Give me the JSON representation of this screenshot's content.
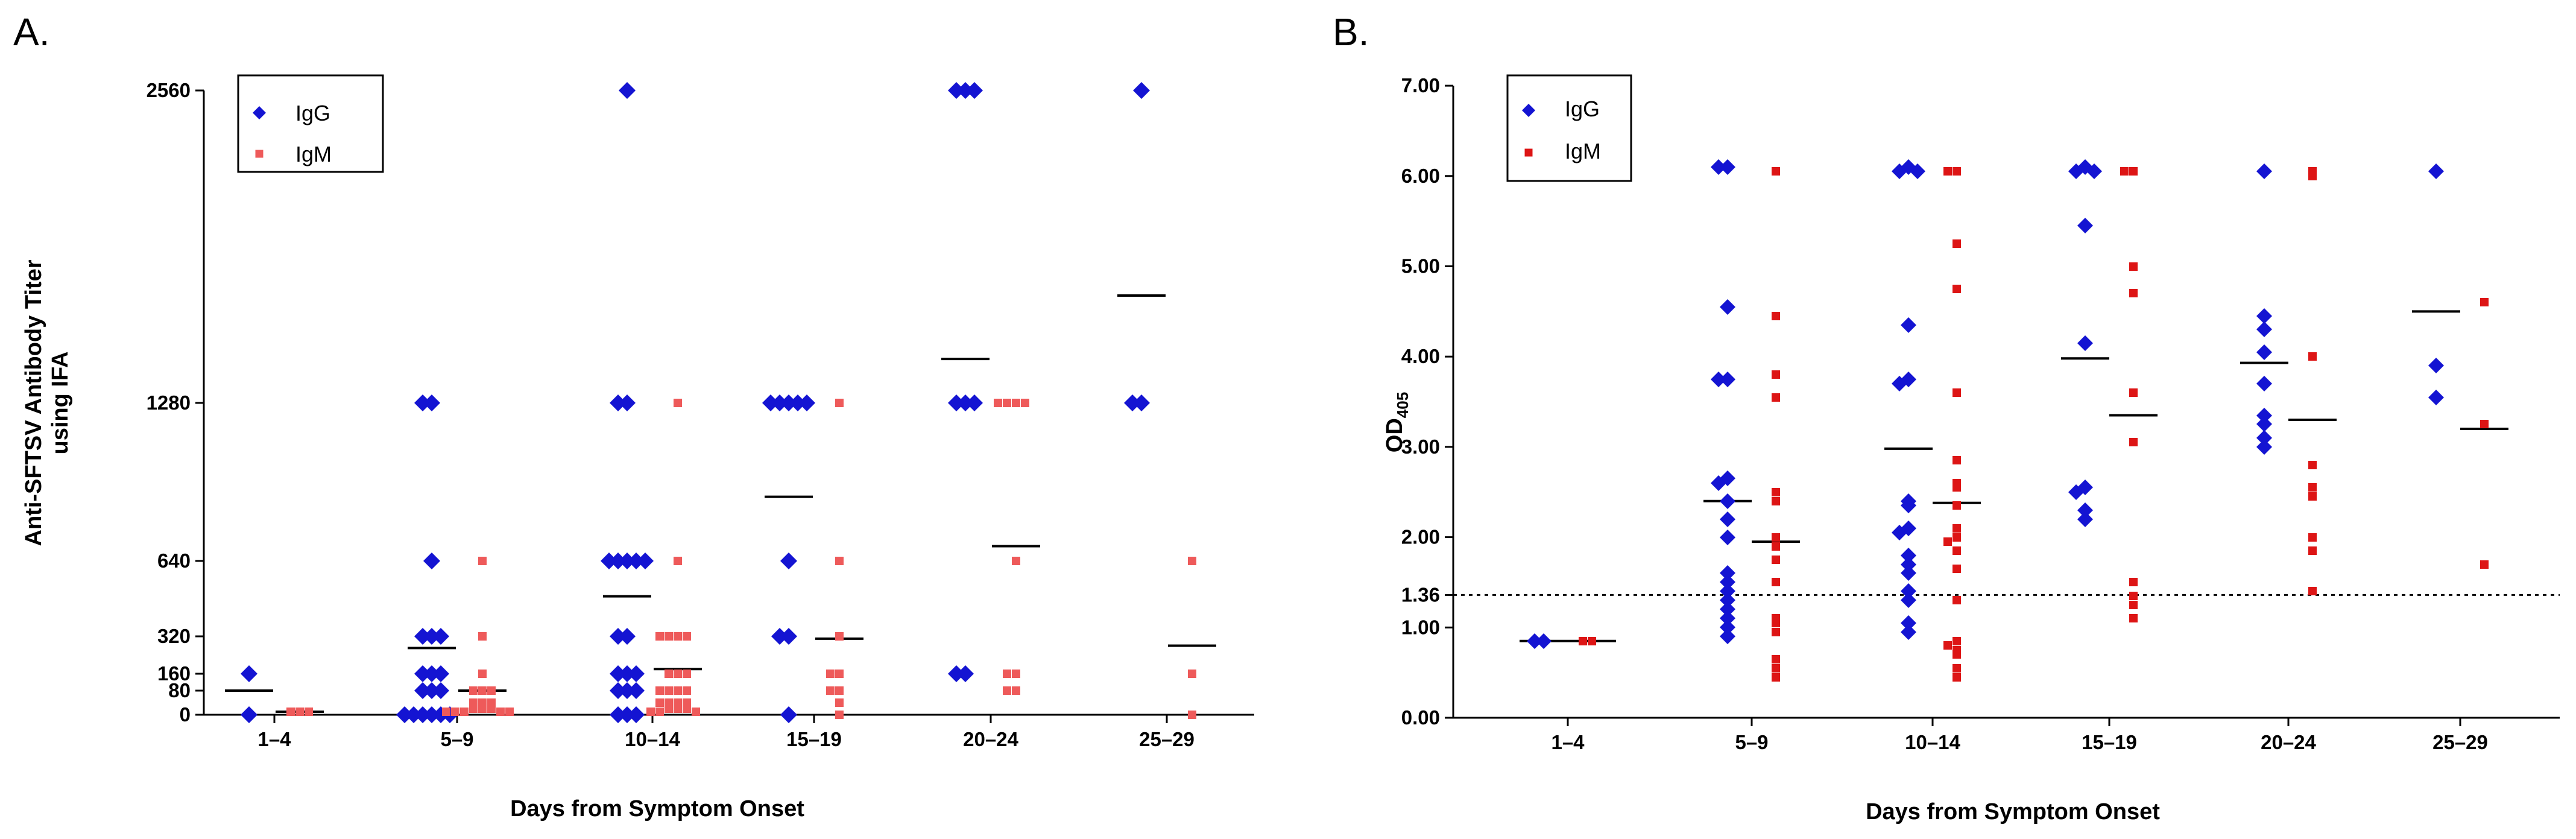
{
  "colors": {
    "igg": "#1414d2",
    "igm_a": "#ee5a5a",
    "igm_b": "#dd1515",
    "mean_line": "#000000",
    "axis": "#000000"
  },
  "chart_data": [
    {
      "panel": "A.",
      "type": "scatter",
      "xlabel": "Days from Symptom Onset",
      "ylabel_lines": [
        "Anti-SFTSV Antibody Titer",
        "using IFA"
      ],
      "categories": [
        "1–4",
        "5–9",
        "10–14",
        "15–19",
        "20–24",
        "25–29"
      ],
      "ylim": [
        0,
        2560
      ],
      "yticks": [
        {
          "value": 0,
          "label": "0"
        },
        {
          "value": 80,
          "label": "80"
        },
        {
          "value": 160,
          "label": "160"
        },
        {
          "value": 320,
          "label": "320"
        },
        {
          "value": 640,
          "label": "640"
        },
        {
          "value": 1280,
          "label": "1280"
        },
        {
          "value": 2560,
          "label": "2560"
        }
      ],
      "legend": [
        {
          "name": "IgG",
          "marker": "diamond"
        },
        {
          "name": "IgM",
          "marker": "square"
        }
      ],
      "series": [
        {
          "name": "IgG",
          "marker": "diamond",
          "color_key": "igg",
          "groups": [
            [
              160,
              0
            ],
            [
              1280,
              1280,
              640,
              320,
              320,
              320,
              160,
              160,
              160,
              80,
              80,
              80,
              0,
              0,
              0,
              0,
              0,
              0
            ],
            [
              2560,
              1280,
              1280,
              640,
              640,
              640,
              640,
              640,
              320,
              320,
              160,
              160,
              160,
              80,
              80,
              80,
              0,
              0,
              0
            ],
            [
              1280,
              1280,
              1280,
              1280,
              1280,
              640,
              320,
              320,
              0
            ],
            [
              2560,
              2560,
              2560,
              1280,
              1280,
              1280,
              160,
              160
            ],
            [
              2560,
              1280,
              1280
            ]
          ],
          "means": [
            80,
            270,
            490,
            900,
            1460,
            1720
          ]
        },
        {
          "name": "IgM",
          "marker": "square",
          "color_key": "igm_a",
          "groups": [
            [
              10,
              10,
              10
            ],
            [
              640,
              320,
              160,
              80,
              80,
              80,
              40,
              40,
              40,
              20,
              20,
              20,
              10,
              10,
              10,
              10,
              10
            ],
            [
              1280,
              640,
              320,
              320,
              320,
              320,
              160,
              160,
              160,
              80,
              80,
              80,
              80,
              40,
              40,
              40,
              40,
              20,
              20,
              20,
              10,
              10,
              10
            ],
            [
              1280,
              640,
              320,
              160,
              160,
              80,
              80,
              40,
              0
            ],
            [
              1280,
              1280,
              1280,
              1280,
              640,
              160,
              160,
              80,
              80
            ],
            [
              640,
              160,
              0
            ]
          ],
          "means": [
            10,
            80,
            180,
            310,
            700,
            280
          ]
        }
      ]
    },
    {
      "panel": "B.",
      "type": "scatter",
      "xlabel": "Days from Symptom Onset",
      "ylabel_main": "OD",
      "ylabel_sub": "405",
      "categories": [
        "1–4",
        "5–9",
        "10–14",
        "15–19",
        "20–24",
        "25–29"
      ],
      "ylim": [
        0,
        7
      ],
      "yticks": [
        {
          "value": 0,
          "label": "0.00"
        },
        {
          "value": 1,
          "label": "1.00"
        },
        {
          "value": 1.36,
          "label": "1.36"
        },
        {
          "value": 2,
          "label": "2.00"
        },
        {
          "value": 3,
          "label": "3.00"
        },
        {
          "value": 4,
          "label": "4.00"
        },
        {
          "value": 5,
          "label": "5.00"
        },
        {
          "value": 6,
          "label": "6.00"
        },
        {
          "value": 7,
          "label": "7.00"
        }
      ],
      "cutoff": 1.36,
      "legend": [
        {
          "name": "IgG",
          "marker": "diamond"
        },
        {
          "name": "IgM",
          "marker": "square"
        }
      ],
      "series": [
        {
          "name": "IgG",
          "marker": "diamond",
          "color_key": "igg",
          "groups": [
            [
              0.85,
              0.85
            ],
            [
              6.1,
              6.1,
              4.55,
              3.75,
              3.75,
              2.65,
              2.6,
              2.4,
              2.2,
              2.0,
              1.6,
              1.5,
              1.4,
              1.3,
              1.2,
              1.1,
              1.0,
              0.9
            ],
            [
              6.1,
              6.05,
              6.05,
              4.35,
              3.75,
              3.7,
              2.4,
              2.35,
              2.1,
              2.05,
              1.8,
              1.7,
              1.6,
              1.4,
              1.3,
              1.05,
              0.95
            ],
            [
              6.1,
              6.05,
              6.05,
              5.45,
              4.15,
              2.55,
              2.5,
              2.3,
              2.2
            ],
            [
              6.05,
              4.45,
              4.3,
              4.05,
              3.7,
              3.35,
              3.25,
              3.1,
              3.0
            ],
            [
              6.05,
              3.9,
              3.55
            ]
          ],
          "means": [
            0.85,
            2.4,
            2.98,
            3.98,
            3.93,
            4.5
          ]
        },
        {
          "name": "IgM",
          "marker": "square",
          "color_key": "igm_b",
          "groups": [
            [
              0.85,
              0.85
            ],
            [
              6.05,
              4.45,
              3.8,
              3.55,
              2.5,
              2.4,
              2.0,
              1.9,
              1.75,
              1.5,
              1.1,
              1.05,
              0.95,
              0.65,
              0.55,
              0.45
            ],
            [
              6.05,
              6.05,
              5.25,
              4.75,
              3.6,
              2.85,
              2.6,
              2.55,
              2.35,
              2.1,
              2.0,
              1.95,
              1.85,
              1.65,
              1.3,
              0.85,
              0.8,
              0.75,
              0.7,
              0.55,
              0.45
            ],
            [
              6.05,
              6.05,
              5.0,
              4.7,
              3.6,
              3.05,
              1.5,
              1.35,
              1.25,
              1.1
            ],
            [
              6.05,
              6.0,
              4.0,
              2.8,
              2.55,
              2.45,
              2.0,
              1.85,
              1.4
            ],
            [
              4.6,
              3.25,
              1.7
            ]
          ],
          "means": [
            0.85,
            1.95,
            2.38,
            3.35,
            3.3,
            3.2
          ]
        }
      ]
    }
  ]
}
